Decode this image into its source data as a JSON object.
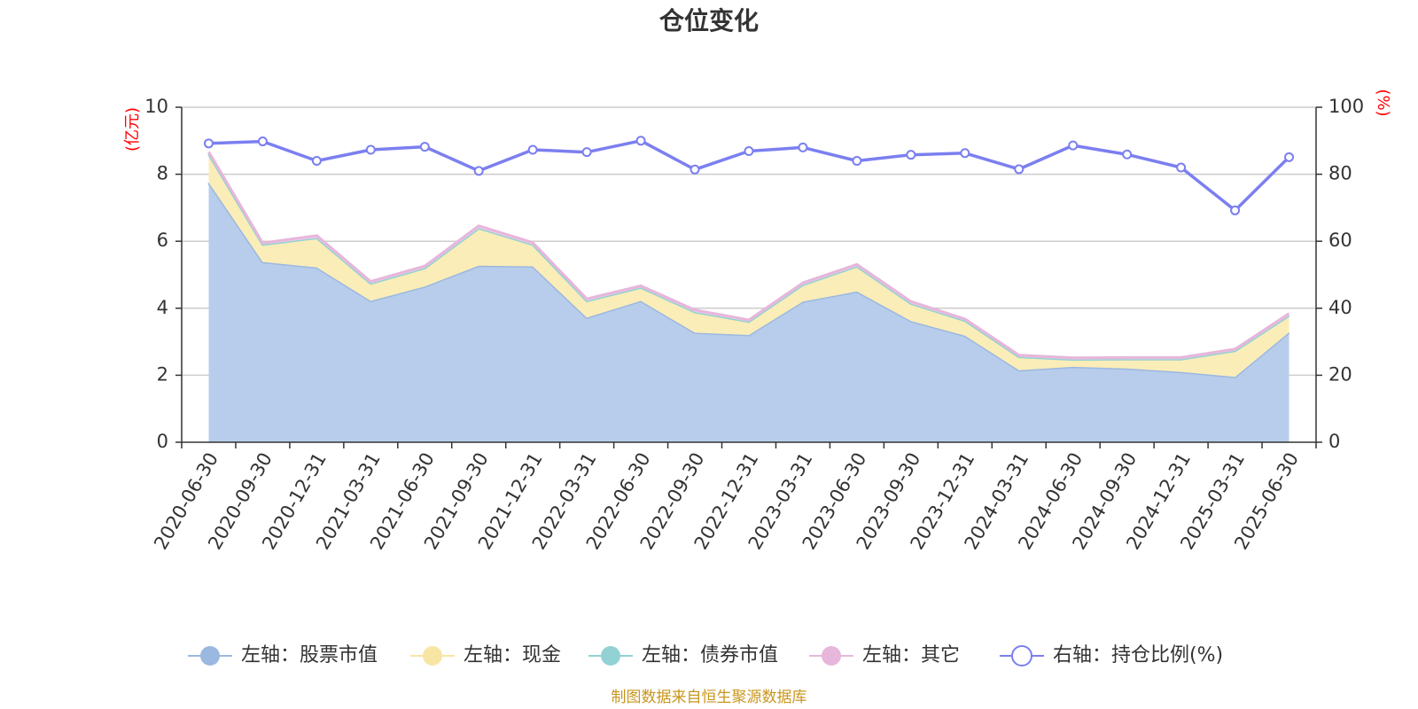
{
  "chart_data": {
    "type": "area",
    "title": "仓位变化",
    "source": "制图数据来自恒生聚源数据库",
    "left_axis": {
      "unit": "(亿元)",
      "range": [
        0,
        10
      ],
      "ticks": [
        "0",
        "2",
        "4",
        "6",
        "8",
        "10"
      ]
    },
    "right_axis": {
      "unit": "(%)",
      "range": [
        0,
        100
      ],
      "ticks": [
        "0",
        "20",
        "40",
        "60",
        "80",
        "100"
      ]
    },
    "categories": [
      "2020-06-30",
      "2020-09-30",
      "2020-12-31",
      "2021-03-31",
      "2021-06-30",
      "2021-09-30",
      "2021-12-31",
      "2022-03-31",
      "2022-06-30",
      "2022-09-30",
      "2022-12-31",
      "2023-03-31",
      "2023-06-30",
      "2023-09-30",
      "2023-12-31",
      "2024-03-31",
      "2024-06-30",
      "2024-09-30",
      "2024-12-31",
      "2025-03-31",
      "2025-06-30"
    ],
    "series": [
      {
        "name": "左轴：股票市值",
        "axis": "left",
        "stack": true,
        "color": "#9bb8e0",
        "fill": "#b8cdeb",
        "values": [
          7.75,
          5.38,
          5.22,
          4.22,
          4.65,
          5.27,
          5.25,
          3.72,
          4.22,
          3.27,
          3.2,
          4.2,
          4.5,
          3.62,
          3.18,
          2.15,
          2.25,
          2.2,
          2.1,
          1.95,
          3.28
        ]
      },
      {
        "name": "左轴：现金",
        "axis": "left",
        "stack": true,
        "color": "#f7e6a3",
        "fill": "#fbedb8",
        "values": [
          0.85,
          0.52,
          0.88,
          0.52,
          0.55,
          1.12,
          0.65,
          0.5,
          0.4,
          0.62,
          0.4,
          0.5,
          0.75,
          0.52,
          0.45,
          0.4,
          0.22,
          0.28,
          0.38,
          0.78,
          0.5
        ]
      },
      {
        "name": "左轴：债券市值",
        "axis": "left",
        "stack": true,
        "color": "#93d2d4",
        "fill": "#bfe3e4",
        "values": [
          0,
          0,
          0,
          0,
          0,
          0,
          0,
          0,
          0,
          0,
          0,
          0,
          0,
          0,
          0,
          0,
          0,
          0,
          0,
          0,
          0
        ]
      },
      {
        "name": "左轴：其它",
        "axis": "left",
        "stack": true,
        "color": "#e7b6db",
        "fill": "#f0cde8",
        "values": [
          0.07,
          0.05,
          0.07,
          0.06,
          0.06,
          0.07,
          0.06,
          0.06,
          0.05,
          0.06,
          0.05,
          0.06,
          0.06,
          0.06,
          0.05,
          0.05,
          0.05,
          0.05,
          0.05,
          0.05,
          0.06
        ]
      },
      {
        "name": "右轴：持仓比例(%)",
        "axis": "right",
        "stack": false,
        "color": "#7b7ff0",
        "fill": "none",
        "values": [
          89.2,
          89.8,
          84.0,
          87.3,
          88.2,
          81.0,
          87.3,
          86.6,
          90.0,
          81.4,
          86.9,
          88.0,
          84.0,
          85.8,
          86.3,
          81.5,
          88.6,
          85.9,
          82.0,
          69.2,
          85.1
        ]
      }
    ],
    "legend_position": "bottom",
    "grid": true
  }
}
